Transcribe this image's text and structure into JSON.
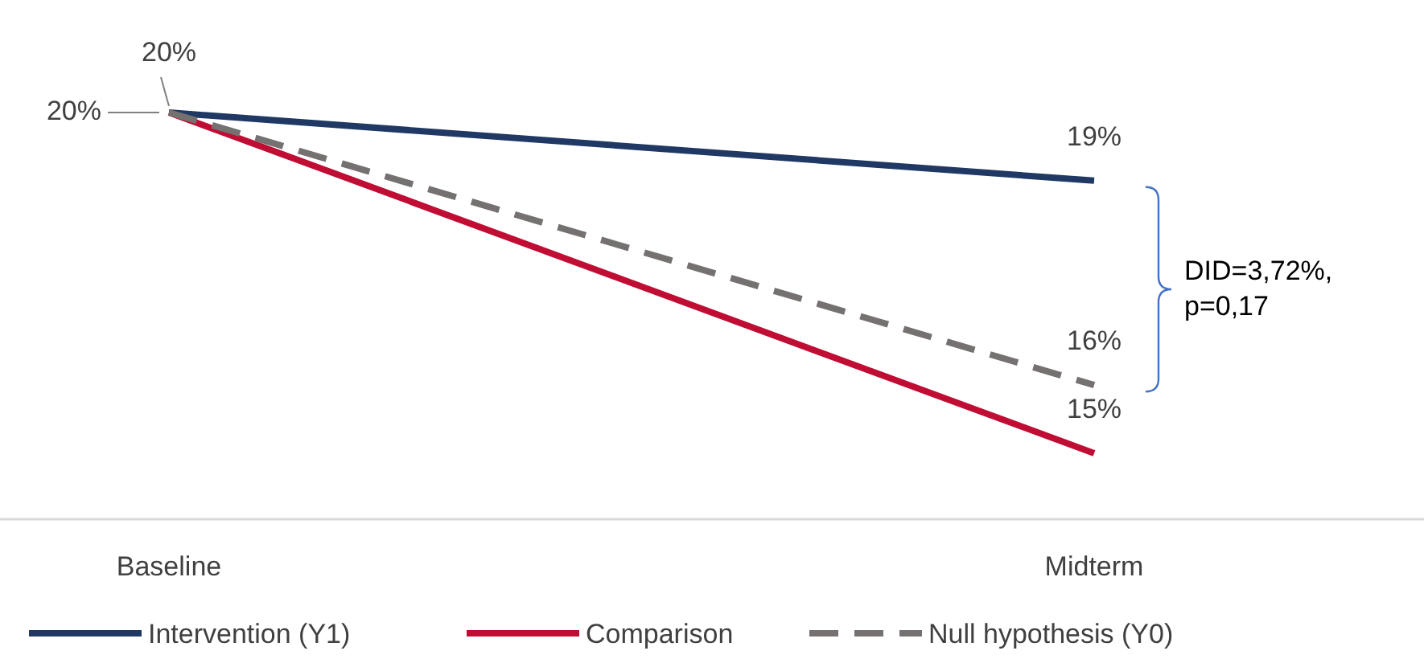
{
  "chart_data": {
    "type": "line",
    "categories": [
      "Baseline",
      "Midterm"
    ],
    "series": [
      {
        "name": "Intervention (Y1)",
        "color": "#1f3864",
        "values": [
          20,
          19
        ],
        "value_labels": [
          null,
          "19%"
        ]
      },
      {
        "name": "Comparison",
        "color": "#c00d34",
        "values": [
          20,
          15
        ],
        "value_labels": [
          "20%",
          "15%"
        ]
      },
      {
        "name": "Null hypothesis (Y0)",
        "color": "#767171",
        "values": [
          20,
          16
        ],
        "value_labels": [
          "20%",
          "16%"
        ],
        "line_style": "dashed"
      }
    ],
    "annotations": [
      "DID=3,72%, p=0,17"
    ],
    "legend": "bottom",
    "marker": "none"
  }
}
